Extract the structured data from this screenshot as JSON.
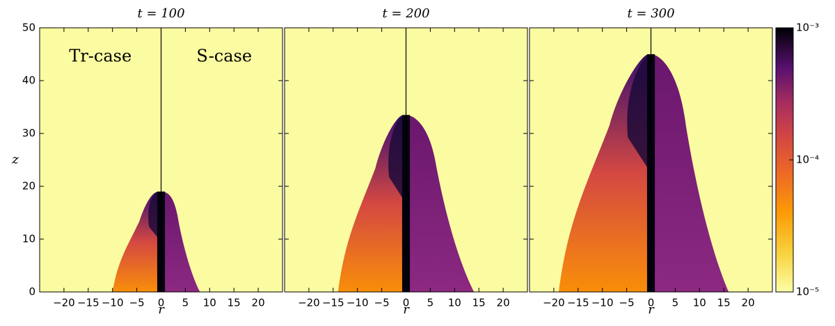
{
  "chart_data": [
    {
      "type": "image",
      "title": "t = 100",
      "xlabel": "r",
      "ylabel": "z",
      "annotations": [
        "Tr-case",
        "S-case"
      ],
      "xlim": [
        -25,
        25
      ],
      "xticks": [
        {
          "value": -20,
          "label": "−20"
        },
        {
          "value": -15,
          "label": "−15"
        },
        {
          "value": -10,
          "label": "−10"
        },
        {
          "value": -5,
          "label": "−5"
        },
        0,
        5,
        10,
        15,
        20
      ],
      "ylim": [
        0,
        50
      ],
      "yticks": [
        0,
        10,
        20,
        30,
        40,
        50
      ]
    },
    {
      "type": "image",
      "title": "t = 200",
      "xlabel": "r",
      "xlim": [
        -25,
        25
      ],
      "xticks": [
        {
          "value": -20,
          "label": "−20"
        },
        {
          "value": -15,
          "label": "−15"
        },
        {
          "value": -10,
          "label": "−10"
        },
        {
          "value": -5,
          "label": "−5"
        },
        0,
        5,
        10,
        15,
        20
      ],
      "ylim": [
        0,
        50
      ],
      "yticks": [
        0,
        10,
        20,
        30,
        40,
        50
      ]
    },
    {
      "type": "image",
      "title": "t = 300",
      "xlabel": "r",
      "xlim": [
        -25,
        25
      ],
      "xticks": [
        {
          "value": -20,
          "label": "−20"
        },
        {
          "value": -15,
          "label": "−15"
        },
        {
          "value": -10,
          "label": "−10"
        },
        {
          "value": -5,
          "label": "−5"
        },
        0,
        5,
        10,
        15,
        20
      ],
      "ylim": [
        0,
        50
      ],
      "yticks": [
        0,
        10,
        20,
        30,
        40,
        50
      ]
    },
    {
      "type": "colorbar",
      "log": true,
      "ylim": [
        1e-05,
        0.001
      ],
      "yticks": [
        {
          "value": 1e-05,
          "label": "10⁻⁵"
        },
        {
          "value": 0.0001,
          "label": "10⁻⁴"
        },
        {
          "value": 0.001,
          "label": "10⁻³"
        }
      ]
    }
  ]
}
